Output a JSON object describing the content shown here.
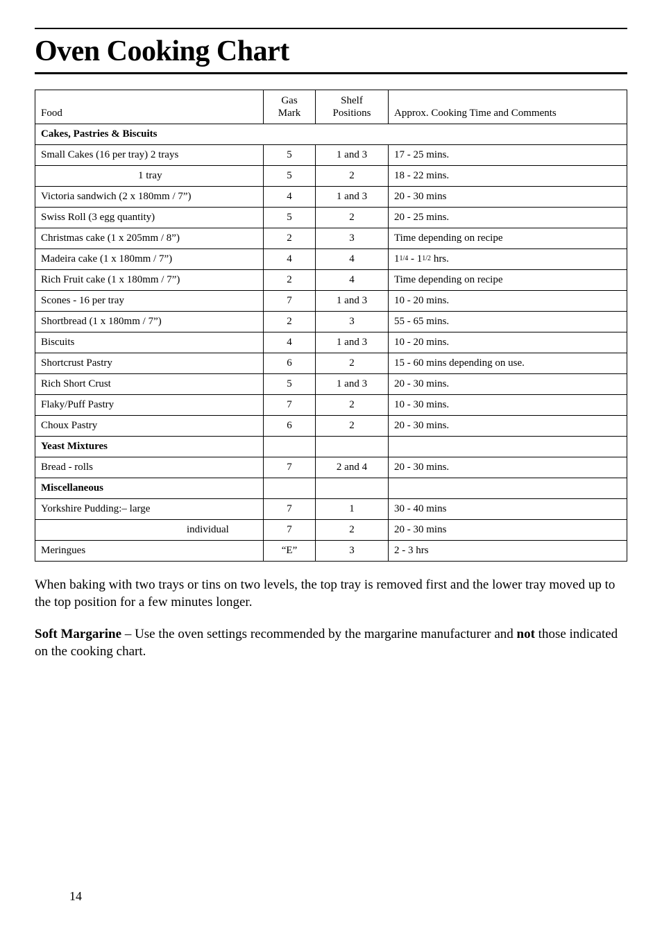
{
  "page": {
    "title": "Oven Cooking Chart",
    "page_number": "14"
  },
  "table": {
    "headers": {
      "food": "Food",
      "gas": "Gas Mark",
      "shelf": "Shelf Positions",
      "comments": "Approx. Cooking Time and Comments"
    },
    "sections": {
      "s0": "Cakes, Pastries & Biscuits",
      "s1": "Yeast Mixtures",
      "s2": "Miscellaneous"
    },
    "rows": {
      "r0": {
        "food": "Small Cakes (16 per tray) 2 trays",
        "gas": "5",
        "shelf": "1 and 3",
        "comments": "17 - 25 mins."
      },
      "r1": {
        "food": "1 tray",
        "gas": "5",
        "shelf": "2",
        "comments": "18 - 22 mins."
      },
      "r2": {
        "food": "Victoria sandwich (2 x 180mm / 7”)",
        "gas": "4",
        "shelf": "1 and 3",
        "comments": "20 - 30 mins"
      },
      "r3": {
        "food": "Swiss Roll (3 egg quantity)",
        "gas": "5",
        "shelf": "2",
        "comments": "20 - 25 mins."
      },
      "r4": {
        "food": "Christmas cake (1 x 205mm / 8”)",
        "gas": "2",
        "shelf": "3",
        "comments": "Time depending on recipe"
      },
      "r5": {
        "food": "Madeira cake (1 x 180mm / 7”)",
        "gas": "4",
        "shelf": "4"
      },
      "r5c_p1": "1",
      "r5c_f1": "1/4",
      "r5c_mid": " - 1",
      "r5c_f2": "1/2",
      "r5c_end": " hrs.",
      "r6": {
        "food": "Rich Fruit cake  (1 x 180mm / 7”)",
        "gas": "2",
        "shelf": "4",
        "comments": "Time depending on recipe"
      },
      "r7": {
        "food": "Scones - 16 per tray",
        "gas": "7",
        "shelf": "1 and 3",
        "comments": "10 - 20 mins."
      },
      "r8": {
        "food": "Shortbread (1 x 180mm / 7”)",
        "gas": "2",
        "shelf": "3",
        "comments": "55 - 65 mins."
      },
      "r9": {
        "food": "Biscuits",
        "gas": "4",
        "shelf": "1 and 3",
        "comments": "10 - 20 mins."
      },
      "r10": {
        "food": "Shortcrust Pastry",
        "gas": "6",
        "shelf": "2",
        "comments": "15 - 60 mins depending on use."
      },
      "r11": {
        "food": "Rich Short Crust",
        "gas": "5",
        "shelf": "1 and 3",
        "comments": "20 - 30 mins."
      },
      "r12": {
        "food": "Flaky/Puff Pastry",
        "gas": "7",
        "shelf": "2",
        "comments": "10 - 30 mins."
      },
      "r13": {
        "food": "Choux Pastry",
        "gas": "6",
        "shelf": "2",
        "comments": "20 - 30 mins."
      },
      "r14": {
        "food": "Bread - rolls",
        "gas": "7",
        "shelf": "2 and 4",
        "comments": "20 - 30 mins."
      },
      "r15": {
        "food": "Yorkshire Pudding:– large",
        "gas": "7",
        "shelf": "1",
        "comments": "30 - 40 mins"
      },
      "r16": {
        "food": "individual",
        "gas": "7",
        "shelf": "2",
        "comments": "20 - 30 mins"
      },
      "r17": {
        "food": "Meringues",
        "gas": "“E”",
        "shelf": "3",
        "comments": "2 - 3 hrs"
      }
    }
  },
  "paragraphs": {
    "p1": "When baking with two trays or tins on two levels, the top tray is removed first and the lower tray moved up to the top position for a few minutes longer.",
    "p2_b1": "Soft Margarine",
    "p2_t1": " – Use the oven settings recommended by the margarine manufacturer and ",
    "p2_b2": "not",
    "p2_t2": " those indicated on the cooking chart."
  },
  "style": {
    "text_color": "#000000",
    "background_color": "#ffffff",
    "title_fontsize": 42,
    "body_fontsize": 19,
    "table_fontsize": 15
  }
}
